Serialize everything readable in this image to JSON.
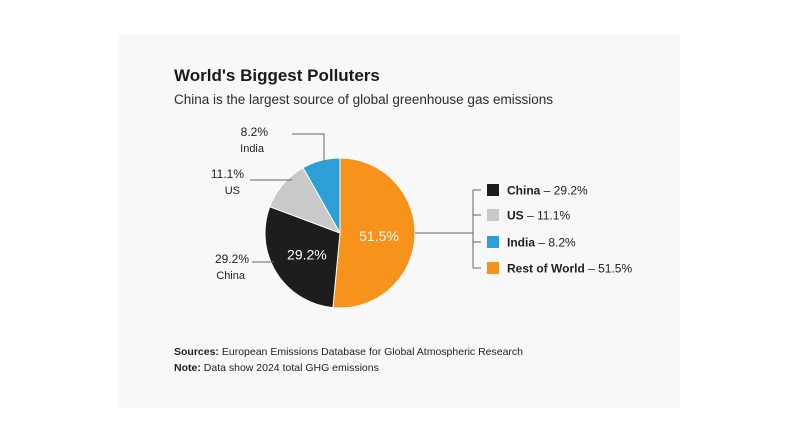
{
  "title": "World's Biggest Polluters",
  "subtitle": "China is the largest source of  global greenhouse gas emissions",
  "chart_data": {
    "type": "pie",
    "slices": [
      {
        "label": "Rest of World",
        "value": 51.5,
        "display": "51.5%",
        "color": "#f7931a",
        "inside_label": "51.5%",
        "legend": "Rest of World – 51.5%"
      },
      {
        "label": "China",
        "value": 29.2,
        "display": "29.2%",
        "color": "#1d1d1d",
        "inside_label": "29.2%",
        "legend": "China – 29.2%",
        "callout_value": "29.2%",
        "callout_name": "China"
      },
      {
        "label": "US",
        "value": 11.1,
        "display": "11.1%",
        "color": "#c9c9c9",
        "legend": "US – 11.1%",
        "callout_value": "11.1%",
        "callout_name": "US"
      },
      {
        "label": "India",
        "value": 8.2,
        "display": "8.2%",
        "color": "#2e9fd6",
        "legend": "India – 8.2%",
        "callout_value": "8.2%",
        "callout_name": "India"
      }
    ],
    "legend_order": [
      "China",
      "US",
      "India",
      "Rest of World"
    ]
  },
  "footer": {
    "sources_label": "Sources:",
    "sources_text": "European Emissions Database for Global Atmospheric Research",
    "note_label": "Note:",
    "note_text": "Data show 2024 total GHG emissions"
  }
}
